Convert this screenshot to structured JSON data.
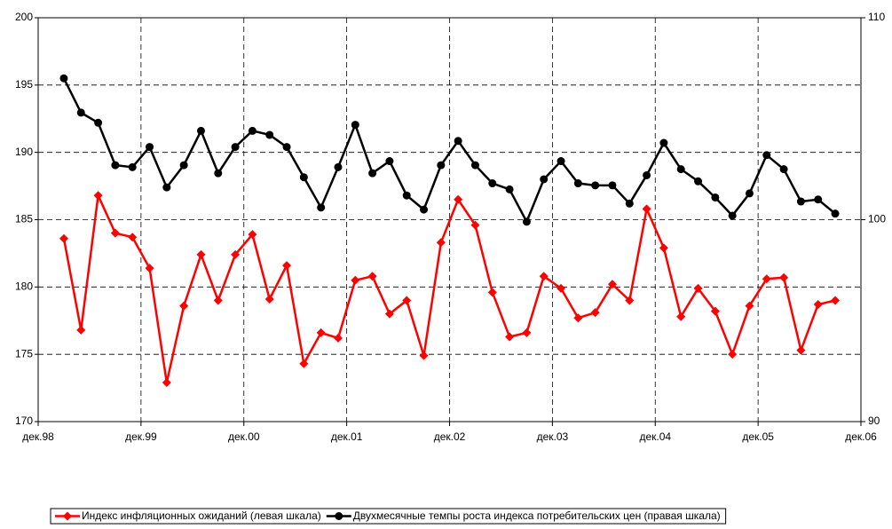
{
  "chart_data": {
    "type": "line",
    "x": [
      3,
      5,
      7,
      9,
      11,
      13,
      15,
      17,
      19,
      21,
      23,
      25,
      27,
      29,
      31,
      33,
      35,
      37,
      39,
      41,
      43,
      45,
      47,
      49,
      51,
      53,
      55,
      57,
      59,
      61,
      63,
      65,
      67,
      69,
      71,
      73,
      75,
      77,
      79,
      81,
      83,
      85,
      87,
      89,
      91,
      93
    ],
    "xlim": [
      0,
      96
    ],
    "xticks": [
      {
        "value": 0,
        "label": "дек.98"
      },
      {
        "value": 12,
        "label": "дек.99"
      },
      {
        "value": 24,
        "label": "дек.00"
      },
      {
        "value": 36,
        "label": "дек.01"
      },
      {
        "value": 48,
        "label": "дек.02"
      },
      {
        "value": 60,
        "label": "дек.03"
      },
      {
        "value": 72,
        "label": "дек.04"
      },
      {
        "value": 84,
        "label": "дек.05"
      },
      {
        "value": 96,
        "label": "дек.06"
      }
    ],
    "ylim": [
      170,
      200
    ],
    "yticks": [
      170,
      175,
      180,
      185,
      190,
      195,
      200
    ],
    "y2lim": [
      90,
      110
    ],
    "y2ticks": [
      90,
      100,
      110
    ],
    "grid": true,
    "legend": "bottom",
    "series": [
      {
        "name": "Индекс инфляционных ожиданий (левая шкала)",
        "color": "#ff0000",
        "marker": "diamond",
        "values": [
          183.6,
          176.8,
          186.8,
          184.0,
          183.7,
          181.4,
          172.9,
          178.6,
          182.4,
          179.0,
          182.4,
          183.9,
          179.1,
          181.6,
          174.3,
          176.6,
          176.2,
          180.5,
          180.8,
          178.0,
          179.0,
          174.9,
          183.3,
          186.5,
          184.6,
          179.6,
          176.3,
          176.6,
          180.8,
          179.9,
          177.7,
          178.1,
          180.2,
          179.0,
          185.8,
          182.9,
          177.8,
          179.9,
          178.2,
          175.0,
          178.6,
          180.6,
          180.7,
          175.3,
          178.7,
          179.0
        ]
      },
      {
        "name": "Двухмесячные темпы роста индекса потребительских цен (правая шкала)",
        "color": "#000000",
        "marker": "circle",
        "axis": "y2",
        "values": [
          107.0,
          105.3,
          104.8,
          102.7,
          102.6,
          103.6,
          101.6,
          102.7,
          104.4,
          102.3,
          103.6,
          104.4,
          104.2,
          103.6,
          102.1,
          100.6,
          102.6,
          104.7,
          102.3,
          102.9,
          101.2,
          100.5,
          102.7,
          103.9,
          102.7,
          101.8,
          101.5,
          99.9,
          102.0,
          102.9,
          101.8,
          101.7,
          101.7,
          100.8,
          102.2,
          103.8,
          102.5,
          101.9,
          101.1,
          100.2,
          101.3,
          103.2,
          102.5,
          100.9,
          101.0,
          100.3
        ]
      }
    ]
  }
}
